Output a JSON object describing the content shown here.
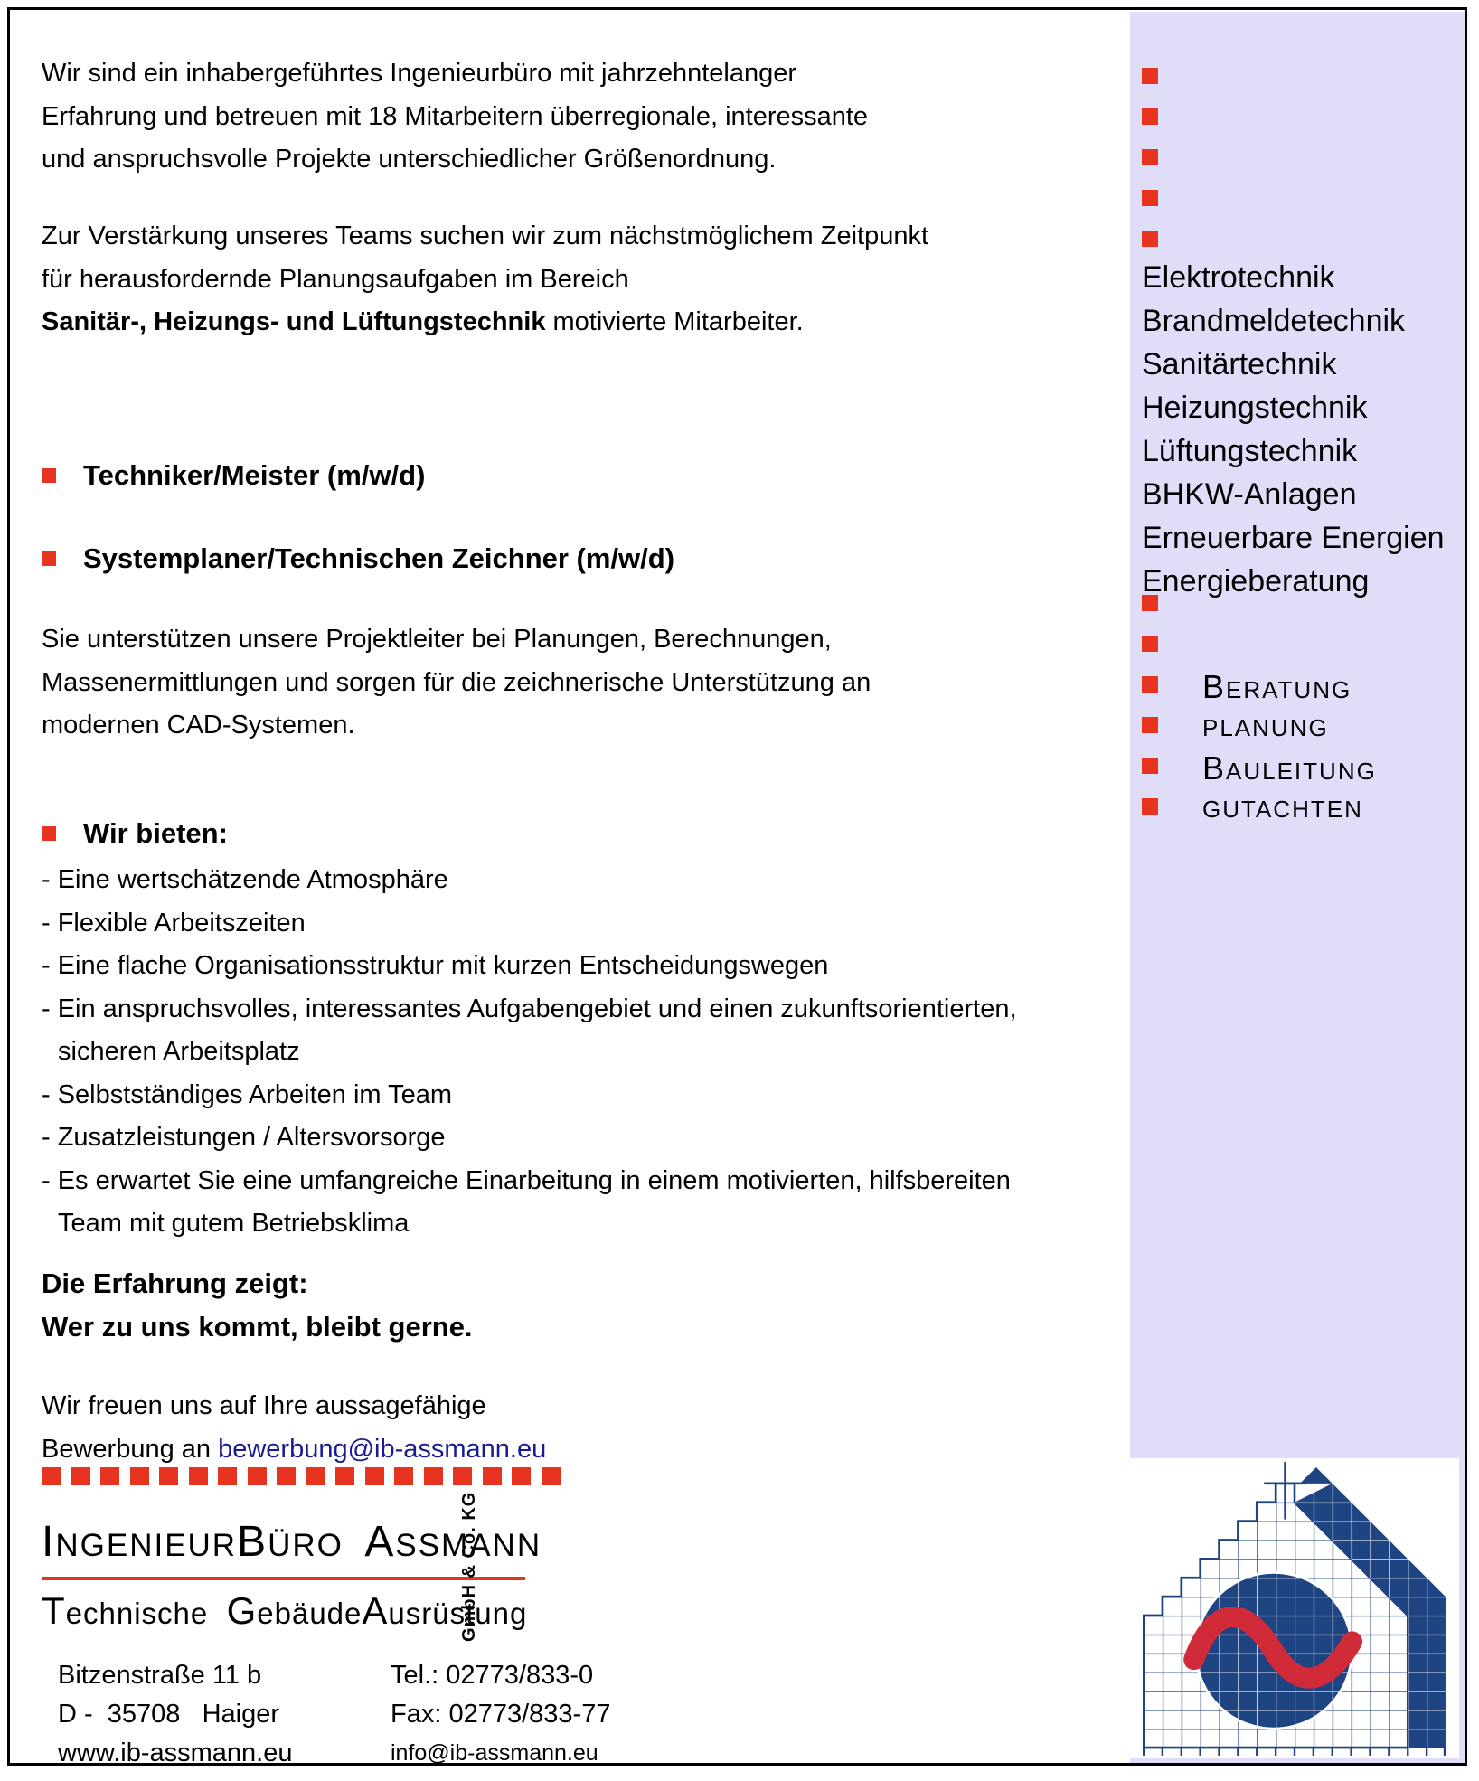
{
  "colors": {
    "accent_red": "#e73420",
    "sidebar_lavender": "#dfddf7",
    "email_blue": "#1a1a96",
    "house_navy": "#1f4482",
    "wave_red": "#d12a38"
  },
  "main": {
    "intro": [
      "Wir sind ein inhabergeführtes Ingenieurbüro mit jahrzehntelanger",
      "Erfahrung und betreuen mit 18 Mitarbeitern überregionale, interessante",
      "und anspruchsvolle Projekte unterschiedlicher Größenordnung."
    ],
    "recruit": [
      "Zur Verstärkung unseres Teams suchen wir zum nächstmöglichem Zeitpunkt",
      "für herausfordernde Planungsaufgaben im Bereich"
    ],
    "recruit_bold": "Sanitär-, Heizungs- und Lüftungstechnik",
    "recruit_tail": " motivierte Mitarbeiter.",
    "jobs": [
      "Techniker/Meister (m/w/d)",
      "Systemplaner/Technischen Zeichner (m/w/d)"
    ],
    "support": [
      "Sie unterstützen unsere Projektleiter bei Planungen, Berechnungen,",
      "Massenermittlungen und sorgen für die zeichnerische Unterstützung an",
      "modernen CAD-Systemen."
    ],
    "offer_heading": "Wir bieten:",
    "offer_items": [
      {
        "dash": true,
        "text": "Eine wertschätzende Atmosphäre"
      },
      {
        "dash": true,
        "text": "Flexible Arbeitszeiten"
      },
      {
        "dash": true,
        "text": "Eine flache Organisationsstruktur mit kurzen Entscheidungswegen"
      },
      {
        "dash": true,
        "text": "Ein anspruchsvolles, interessantes Aufgabengebiet und einen zukunftsorientierten,"
      },
      {
        "dash": false,
        "text": "sicheren Arbeitsplatz"
      },
      {
        "dash": true,
        "text": "Selbstständiges Arbeiten im Team"
      },
      {
        "dash": true,
        "text": "Zusatzleistungen / Altersvorsorge"
      },
      {
        "dash": true,
        "text": "Es erwartet Sie eine umfangreiche Einarbeitung in einem motivierten, hilfsbereiten"
      },
      {
        "dash": false,
        "text": "Team mit gutem Betriebsklima"
      }
    ],
    "experience": [
      "Die Erfahrung zeigt:",
      "Wer zu uns kommt, bleibt gerne."
    ],
    "closing_line": "Wir freuen uns auf Ihre aussagefähige",
    "closing_prefix": "Bewerbung an ",
    "closing_email": "bewerbung@ib-assmann.eu"
  },
  "sidebar": {
    "bullet_count": 5,
    "services": [
      "Elektrotechnik",
      "Brandmeldetechnik",
      "Sanitärtechnik",
      "Heizungstechnik",
      "Lüftungstechnik",
      "BHKW-Anlagen",
      "Erneuerbare Energien",
      "Energieberatung"
    ],
    "capabilities": [
      {
        "lead": "",
        "rest": ""
      },
      {
        "lead": "",
        "rest": ""
      },
      {
        "lead": "B",
        "rest": "ERATUNG"
      },
      {
        "lead": "",
        "rest": "PLANUNG"
      },
      {
        "lead": "B",
        "rest": "AULEITUNG"
      },
      {
        "lead": "",
        "rest": "GUTACHTEN"
      }
    ]
  },
  "footer": {
    "dash_count": 18,
    "logo_name_segments": [
      {
        "t": "I",
        "s": "lg"
      },
      {
        "t": "NGENIEUR",
        "s": "sm"
      },
      {
        "t": "B",
        "s": "lg"
      },
      {
        "t": "ÜRO",
        "s": "sm"
      },
      {
        "t": "  ",
        "s": "sm"
      },
      {
        "t": "A",
        "s": "lg"
      },
      {
        "t": "SSMANN",
        "s": "sm"
      }
    ],
    "logo_sub_segments": [
      {
        "t": "T",
        "s": "lg"
      },
      {
        "t": "echnische  ",
        "s": "sm"
      },
      {
        "t": "G",
        "s": "lg"
      },
      {
        "t": "ebäude",
        "s": "sm"
      },
      {
        "t": "A",
        "s": "lg"
      },
      {
        "t": "usrüstung",
        "s": "sm"
      }
    ],
    "company_suffix": "GmbH & Co. KG",
    "address": [
      "Bitzenstraße 11 b",
      "D -  35708   Haiger",
      "www.ib-assmann.eu"
    ],
    "contact": [
      {
        "text": "Tel.: 02773/833-0",
        "small": false
      },
      {
        "text": "Fax: 02773/833-77",
        "small": false
      },
      {
        "text": "info@ib-assmann.eu",
        "small": true
      }
    ]
  }
}
